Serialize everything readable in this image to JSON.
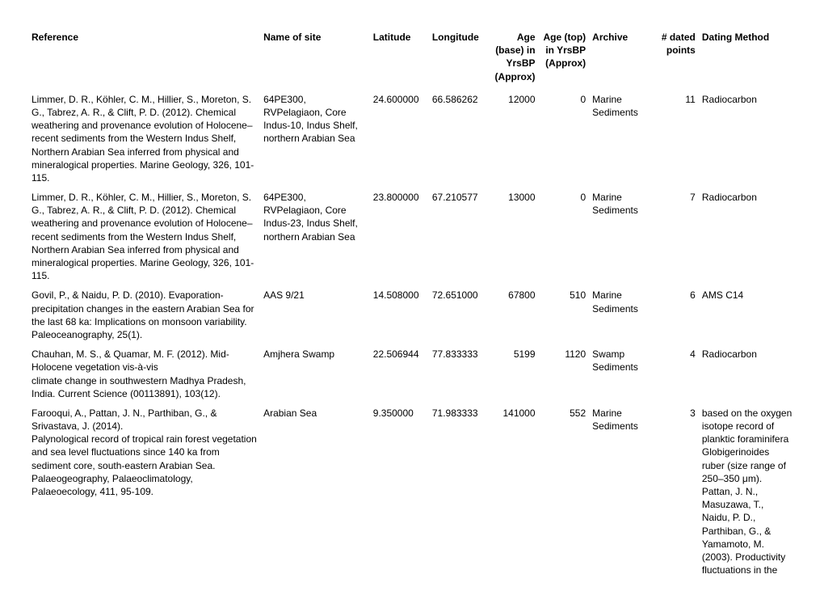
{
  "columns": {
    "reference": "Reference",
    "site": "Name of site",
    "latitude": "Latitude",
    "longitude": "Longitude",
    "age_base": "Age (base) in YrsBP (Approx)",
    "age_top": "Age (top) in YrsBP (Approx)",
    "archive": "Archive",
    "points": "# dated points",
    "dating": "Dating Method"
  },
  "rows": [
    {
      "reference": "Limmer, D. R., Köhler, C. M., Hillier, S., Moreton, S. G., Tabrez, A. R., & Clift, P. D. (2012). Chemical weathering and provenance evolution of Holocene–recent sediments from the Western Indus Shelf, Northern Arabian Sea inferred from physical and mineralogical properties. Marine Geology, 326, 101-115.",
      "site": "64PE300, RVPelagiaon, Core Indus-10, Indus Shelf,\nnorthern Arabian Sea",
      "latitude": "24.600000",
      "longitude": "66.586262",
      "age_base": "12000",
      "age_top": "0",
      "archive": "Marine Sediments",
      "points": "11",
      "dating": "Radiocarbon"
    },
    {
      "reference": "Limmer, D. R., Köhler, C. M., Hillier, S., Moreton, S. G., Tabrez, A. R., & Clift, P. D. (2012). Chemical weathering and provenance evolution of Holocene–recent sediments from the Western Indus Shelf, Northern Arabian Sea inferred from physical and mineralogical properties. Marine Geology, 326, 101-115.",
      "site": "64PE300, RVPelagiaon, Core Indus-23, Indus Shelf,\nnorthern Arabian Sea",
      "latitude": "23.800000",
      "longitude": "67.210577",
      "age_base": "13000",
      "age_top": "0",
      "archive": "Marine Sediments",
      "points": "7",
      "dating": "Radiocarbon"
    },
    {
      "reference": "Govil, P., & Naidu, P. D. (2010). Evaporation-precipitation changes in the eastern Arabian Sea for the last 68 ka: Implications on monsoon variability. Paleoceanography, 25(1).",
      "site": "AAS 9/21",
      "latitude": "14.508000",
      "longitude": "72.651000",
      "age_base": "67800",
      "age_top": "510",
      "archive": "Marine Sediments",
      "points": "6",
      "dating": "AMS C14"
    },
    {
      "reference": "Chauhan, M. S., & Quamar, M. F. (2012). Mid-Holocene vegetation vis-à-vis\nclimate change in southwestern Madhya Pradesh, India. Current Science (00113891), 103(12).",
      "site": "Amjhera Swamp",
      "latitude": "22.506944",
      "longitude": "77.833333",
      "age_base": "5199",
      "age_top": "1120",
      "archive": "Swamp Sediments",
      "points": "4",
      "dating": "Radiocarbon"
    },
    {
      "reference": "Farooqui, A., Pattan, J. N., Parthiban, G., & Srivastava, J. (2014).\nPalynological record of tropical rain forest vegetation and sea level fluctuations since 140 ka from sediment core, south-eastern Arabian Sea.\nPalaeogeography, Palaeoclimatology, Palaeoecology, 411, 95-109.",
      "site": "Arabian Sea",
      "latitude": "9.350000",
      "longitude": "71.983333",
      "age_base": "141000",
      "age_top": "552",
      "archive": "Marine Sediments",
      "points": "3",
      "dating": "based on the oxygen isotope record of planktic foraminifera Globigerinoides ruber (size range of 250–350 μm). Pattan, J. N., Masuzawa, T., Naidu, P. D., Parthiban, G., & Yamamoto, M. (2003). Productivity fluctuations in the"
    }
  ]
}
